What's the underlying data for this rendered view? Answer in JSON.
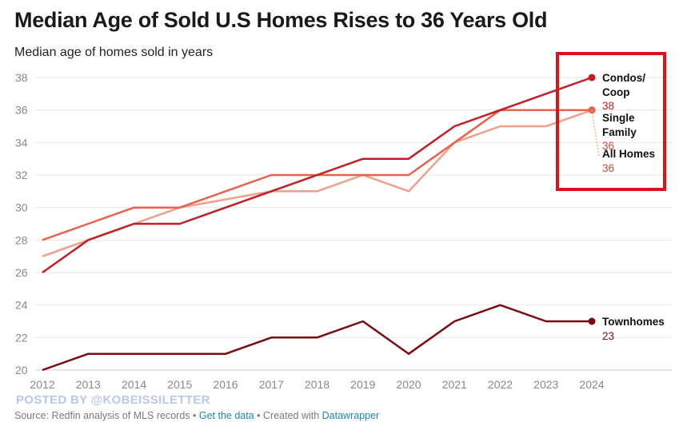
{
  "header": {
    "title": "Median Age of Sold U.S Homes Rises to 36 Years Old",
    "subtitle": "Median age of homes sold in years"
  },
  "watermark": "POSTED BY @KOBEISSILETTER",
  "footer": {
    "source": "Source: Redfin analysis of MLS records",
    "sep1": " • ",
    "get_data": "Get the data",
    "sep2": " • Created with ",
    "datawrapper": "Datawrapper"
  },
  "highlight_box_color": "#d9141b",
  "chart_data": {
    "type": "line",
    "title": "Median Age of Sold U.S Homes Rises to 36 Years Old",
    "subtitle": "Median age of homes sold in years",
    "x": [
      "2012",
      "2013",
      "2014",
      "2015",
      "2016",
      "2017",
      "2018",
      "2019",
      "2020",
      "2021",
      "2022",
      "2023",
      "2024"
    ],
    "ylim": [
      20,
      38
    ],
    "yticks": [
      20,
      22,
      24,
      26,
      28,
      30,
      32,
      34,
      36,
      38
    ],
    "grid": true,
    "series": [
      {
        "name": "All Homes",
        "label": [
          "All Homes"
        ],
        "value_label": "36",
        "color": "#f0a08a",
        "label_color": "#c94a3a",
        "values": [
          27,
          28,
          29,
          30,
          30.5,
          31,
          31,
          32,
          31,
          34,
          35,
          35,
          36
        ]
      },
      {
        "name": "Single Family",
        "label": [
          "Single",
          "Family"
        ],
        "value_label": "36",
        "color": "#e8624f",
        "label_color": "#d9473a",
        "values": [
          28,
          29,
          30,
          30,
          31,
          32,
          32,
          32,
          32,
          34,
          36,
          36,
          36
        ]
      },
      {
        "name": "Condos/Coop",
        "label": [
          "Condos/",
          "Coop"
        ],
        "value_label": "38",
        "color": "#c01f26",
        "label_color": "#c01f26",
        "values": [
          26,
          28,
          29,
          29,
          30,
          31,
          32,
          33,
          33,
          35,
          36,
          37,
          38
        ]
      },
      {
        "name": "Townhomes",
        "label": [
          "Townhomes"
        ],
        "value_label": "23",
        "color": "#7a0c10",
        "label_color": "#7a0c10",
        "values": [
          20,
          21,
          21,
          21,
          21,
          22,
          22,
          23,
          21,
          23,
          24,
          23,
          23
        ]
      }
    ]
  }
}
